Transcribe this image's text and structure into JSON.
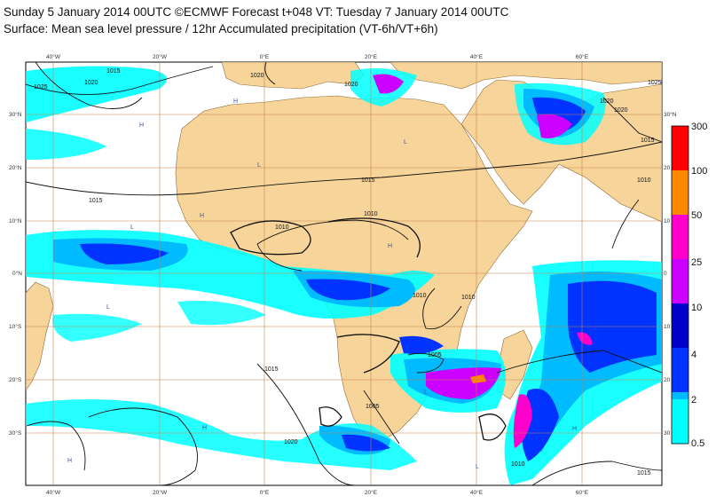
{
  "title_line1": "Sunday 5 January 2014 00UTC ©ECMWF Forecast t+048 VT: Tuesday 7 January 2014 00UTC",
  "title_line2": "Surface: Mean sea level pressure / 12hr Accumulated precipitation (VT-6h/VT+6h)",
  "lon_labels": [
    "40°W",
    "20°W",
    "0°E",
    "20°E",
    "40°E",
    "60°E"
  ],
  "lat_labels_left": [
    "30°N",
    "20°N",
    "10°N",
    "0°N",
    "10°S",
    "20°S",
    "30°S"
  ],
  "lat_labels_right": [
    "30°N",
    "20",
    "10",
    "0",
    "10",
    "20",
    "30"
  ],
  "isobar_labels": {
    "a": "1015",
    "b": "1020",
    "c": "1025",
    "d": "1020",
    "e": "1020",
    "f": "1015",
    "g": "1015",
    "h": "1010",
    "i": "1010",
    "j": "1010",
    "k": "1010",
    "l": "1005",
    "m": "1015",
    "n": "1005",
    "o": "1020",
    "p": "1010",
    "q": "1015",
    "r": "1020",
    "s": "1015",
    "t": "1025",
    "u": "1010",
    "v": "1020"
  },
  "pressure_centers": [
    "H",
    "L"
  ],
  "legend": {
    "levels": [
      "0.5",
      "2",
      "4",
      "10",
      "25",
      "50",
      "100",
      "300"
    ],
    "colors": {
      "c1": "#00ffff",
      "c2": "#00bbff",
      "c3": "#0033ff",
      "c4": "#0000cc",
      "c5": "#cc00ff",
      "c6": "#ff00cc",
      "c7": "#ff8800",
      "c8": "#ff0000"
    }
  },
  "colors": {
    "land": "#f7d59a",
    "grid": "#c8824a"
  }
}
